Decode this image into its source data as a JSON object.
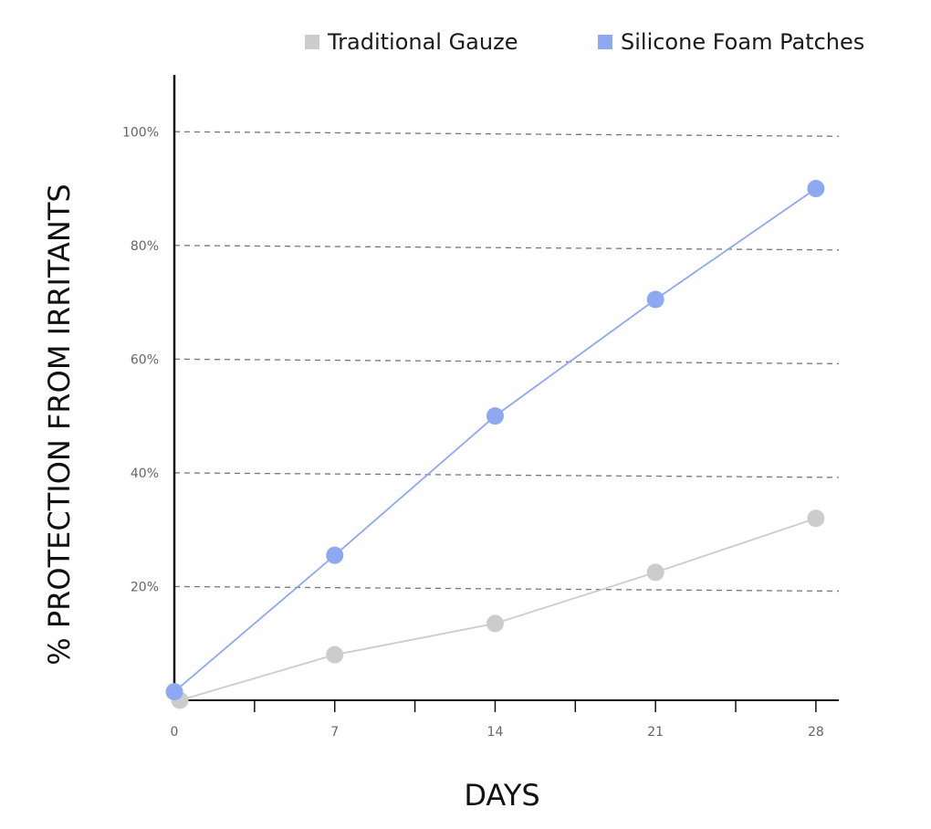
{
  "chart_data": {
    "type": "line",
    "title": "",
    "xlabel": "DAYS",
    "ylabel": "% PROTECTION FROM IRRITANTS",
    "x": [
      0,
      7,
      14,
      21,
      28
    ],
    "x_tick_labels": [
      "0",
      "7",
      "14",
      "21",
      "28"
    ],
    "y_tick_labels": [
      "20%",
      "40%",
      "60%",
      "80%",
      "100%"
    ],
    "y_ticks": [
      20,
      40,
      60,
      80,
      100
    ],
    "xlim": [
      0,
      29
    ],
    "ylim": [
      0,
      110
    ],
    "grid": "dashed horizontal",
    "legend_position": "top-right",
    "series": [
      {
        "name": "Traditional Gauze",
        "color": "#cccccc",
        "values": [
          0,
          8,
          13.5,
          22.5,
          32
        ]
      },
      {
        "name": "Silicone Foam Patches",
        "color": "#8fa8f2",
        "values": [
          1.5,
          25.5,
          50,
          70.5,
          90
        ]
      }
    ]
  }
}
